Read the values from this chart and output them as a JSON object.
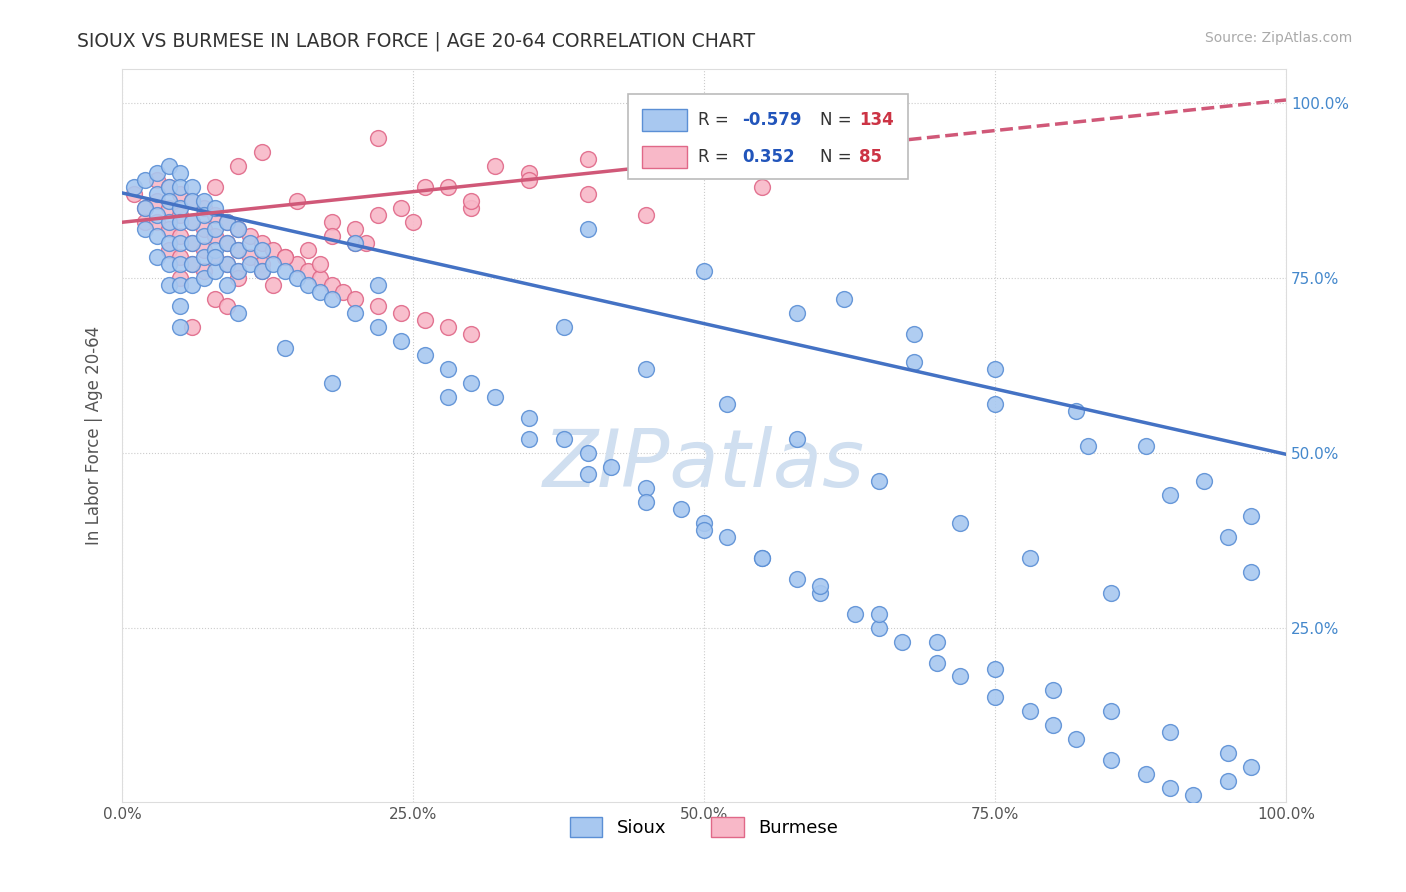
{
  "title": "SIOUX VS BURMESE IN LABOR FORCE | AGE 20-64 CORRELATION CHART",
  "source_text": "Source: ZipAtlas.com",
  "ylabel": "In Labor Force | Age 20-64",
  "xlim": [
    0.0,
    1.0
  ],
  "ylim": [
    0.0,
    1.05
  ],
  "x_ticks": [
    0.0,
    0.25,
    0.5,
    0.75,
    1.0
  ],
  "x_tick_labels": [
    "0.0%",
    "25.0%",
    "50.0%",
    "75.0%",
    "100.0%"
  ],
  "y_ticks": [
    0.25,
    0.5,
    0.75,
    1.0
  ],
  "y_tick_labels": [
    "25.0%",
    "50.0%",
    "75.0%",
    "100.0%"
  ],
  "sioux_color": "#a8c8f0",
  "burmese_color": "#f8b8c8",
  "sioux_edge_color": "#5b8fd5",
  "burmese_edge_color": "#e06888",
  "sioux_line_color": "#4472c4",
  "burmese_line_color": "#d05878",
  "sioux_R": -0.579,
  "sioux_N": 134,
  "burmese_R": 0.352,
  "burmese_N": 85,
  "legend_box_color": "#a8c8f0",
  "legend_box_color2": "#f8b8c8",
  "legend_R_color": "#2255bb",
  "legend_N_color": "#cc3344",
  "watermark_text": "ZIPatlas",
  "watermark_color": "#d0dff0",
  "legend_label_sioux": "Sioux",
  "legend_label_burmese": "Burmese",
  "sioux_line_y0": 0.872,
  "sioux_line_y1": 0.498,
  "burmese_line_y0": 0.83,
  "burmese_line_y1": 1.005,
  "sioux_x": [
    0.01,
    0.02,
    0.02,
    0.02,
    0.03,
    0.03,
    0.03,
    0.03,
    0.03,
    0.04,
    0.04,
    0.04,
    0.04,
    0.04,
    0.04,
    0.04,
    0.05,
    0.05,
    0.05,
    0.05,
    0.05,
    0.05,
    0.05,
    0.05,
    0.05,
    0.06,
    0.06,
    0.06,
    0.06,
    0.06,
    0.06,
    0.07,
    0.07,
    0.07,
    0.07,
    0.07,
    0.08,
    0.08,
    0.08,
    0.08,
    0.09,
    0.09,
    0.09,
    0.09,
    0.1,
    0.1,
    0.1,
    0.11,
    0.11,
    0.12,
    0.12,
    0.13,
    0.14,
    0.15,
    0.16,
    0.17,
    0.18,
    0.2,
    0.22,
    0.24,
    0.26,
    0.28,
    0.3,
    0.32,
    0.35,
    0.38,
    0.4,
    0.42,
    0.45,
    0.48,
    0.5,
    0.52,
    0.55,
    0.58,
    0.6,
    0.63,
    0.65,
    0.67,
    0.7,
    0.72,
    0.75,
    0.78,
    0.8,
    0.82,
    0.85,
    0.88,
    0.9,
    0.92,
    0.95,
    0.97,
    0.2,
    0.22,
    0.14,
    0.18,
    0.08,
    0.1,
    0.28,
    0.35,
    0.4,
    0.45,
    0.5,
    0.55,
    0.6,
    0.65,
    0.7,
    0.75,
    0.8,
    0.85,
    0.9,
    0.95,
    0.38,
    0.45,
    0.52,
    0.58,
    0.65,
    0.72,
    0.78,
    0.85,
    0.62,
    0.68,
    0.75,
    0.82,
    0.88,
    0.93,
    0.97,
    0.4,
    0.5,
    0.58,
    0.68,
    0.75,
    0.83,
    0.9,
    0.95,
    0.97
  ],
  "sioux_y": [
    0.88,
    0.89,
    0.85,
    0.82,
    0.9,
    0.87,
    0.84,
    0.81,
    0.78,
    0.91,
    0.88,
    0.86,
    0.83,
    0.8,
    0.77,
    0.74,
    0.9,
    0.88,
    0.85,
    0.83,
    0.8,
    0.77,
    0.74,
    0.71,
    0.68,
    0.88,
    0.86,
    0.83,
    0.8,
    0.77,
    0.74,
    0.86,
    0.84,
    0.81,
    0.78,
    0.75,
    0.85,
    0.82,
    0.79,
    0.76,
    0.83,
    0.8,
    0.77,
    0.74,
    0.82,
    0.79,
    0.76,
    0.8,
    0.77,
    0.79,
    0.76,
    0.77,
    0.76,
    0.75,
    0.74,
    0.73,
    0.72,
    0.7,
    0.68,
    0.66,
    0.64,
    0.62,
    0.6,
    0.58,
    0.55,
    0.52,
    0.5,
    0.48,
    0.45,
    0.42,
    0.4,
    0.38,
    0.35,
    0.32,
    0.3,
    0.27,
    0.25,
    0.23,
    0.2,
    0.18,
    0.15,
    0.13,
    0.11,
    0.09,
    0.06,
    0.04,
    0.02,
    0.01,
    0.03,
    0.05,
    0.8,
    0.74,
    0.65,
    0.6,
    0.78,
    0.7,
    0.58,
    0.52,
    0.47,
    0.43,
    0.39,
    0.35,
    0.31,
    0.27,
    0.23,
    0.19,
    0.16,
    0.13,
    0.1,
    0.07,
    0.68,
    0.62,
    0.57,
    0.52,
    0.46,
    0.4,
    0.35,
    0.3,
    0.72,
    0.67,
    0.62,
    0.56,
    0.51,
    0.46,
    0.41,
    0.82,
    0.76,
    0.7,
    0.63,
    0.57,
    0.51,
    0.44,
    0.38,
    0.33
  ],
  "burmese_x": [
    0.01,
    0.02,
    0.02,
    0.03,
    0.03,
    0.03,
    0.04,
    0.04,
    0.04,
    0.04,
    0.05,
    0.05,
    0.05,
    0.05,
    0.05,
    0.06,
    0.06,
    0.06,
    0.06,
    0.07,
    0.07,
    0.07,
    0.07,
    0.08,
    0.08,
    0.08,
    0.09,
    0.09,
    0.09,
    0.1,
    0.1,
    0.1,
    0.11,
    0.11,
    0.12,
    0.12,
    0.13,
    0.14,
    0.15,
    0.16,
    0.17,
    0.18,
    0.19,
    0.2,
    0.22,
    0.24,
    0.26,
    0.28,
    0.3,
    0.1,
    0.08,
    0.12,
    0.15,
    0.18,
    0.22,
    0.26,
    0.3,
    0.35,
    0.4,
    0.45,
    0.5,
    0.55,
    0.2,
    0.25,
    0.3,
    0.35,
    0.4,
    0.45,
    0.5,
    0.12,
    0.16,
    0.2,
    0.24,
    0.28,
    0.32,
    0.08,
    0.1,
    0.14,
    0.18,
    0.22,
    0.06,
    0.09,
    0.13,
    0.17,
    0.21
  ],
  "burmese_y": [
    0.87,
    0.85,
    0.83,
    0.89,
    0.86,
    0.83,
    0.88,
    0.85,
    0.82,
    0.79,
    0.87,
    0.84,
    0.81,
    0.78,
    0.75,
    0.86,
    0.83,
    0.8,
    0.77,
    0.85,
    0.82,
    0.79,
    0.76,
    0.84,
    0.81,
    0.78,
    0.83,
    0.8,
    0.77,
    0.82,
    0.79,
    0.76,
    0.81,
    0.78,
    0.8,
    0.77,
    0.79,
    0.78,
    0.77,
    0.76,
    0.75,
    0.74,
    0.73,
    0.72,
    0.71,
    0.7,
    0.69,
    0.68,
    0.67,
    0.91,
    0.88,
    0.93,
    0.86,
    0.83,
    0.95,
    0.88,
    0.85,
    0.9,
    0.87,
    0.84,
    0.91,
    0.88,
    0.8,
    0.83,
    0.86,
    0.89,
    0.92,
    0.95,
    0.98,
    0.76,
    0.79,
    0.82,
    0.85,
    0.88,
    0.91,
    0.72,
    0.75,
    0.78,
    0.81,
    0.84,
    0.68,
    0.71,
    0.74,
    0.77,
    0.8
  ]
}
